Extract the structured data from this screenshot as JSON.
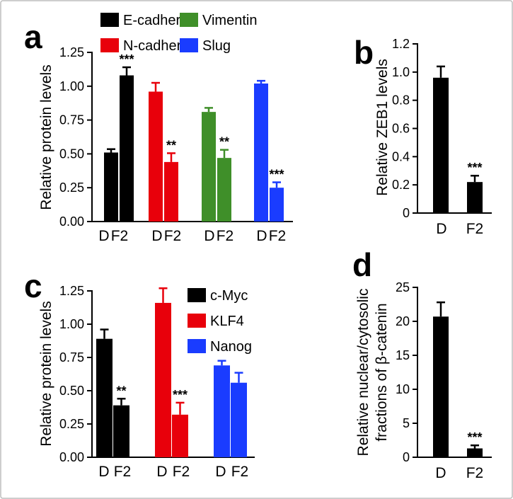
{
  "chart_data": [
    {
      "panel": "a",
      "type": "bar",
      "ylabel": "Relative protein levels",
      "ylim": [
        0,
        1.25
      ],
      "yticks": [
        "0.00",
        "0.25",
        "0.50",
        "0.75",
        "1.00",
        "1.25"
      ],
      "categories": [
        "D",
        "F2"
      ],
      "legend": {
        "placement": "top",
        "entries": [
          {
            "name": "E-cadherin",
            "color": "#000000"
          },
          {
            "name": "N-cadherin",
            "color": "#e8000b"
          },
          {
            "name": "Vimentin",
            "color": "#3f8f29"
          },
          {
            "name": "Slug",
            "color": "#1a3cff"
          }
        ]
      },
      "series": [
        {
          "name": "E-cadherin",
          "color": "#000000",
          "values": [
            0.51,
            1.08
          ],
          "errors": [
            0.025,
            0.06
          ],
          "significance": [
            "",
            "***"
          ]
        },
        {
          "name": "N-cadherin",
          "color": "#e8000b",
          "values": [
            0.96,
            0.44
          ],
          "errors": [
            0.065,
            0.065
          ],
          "significance": [
            "",
            "**"
          ]
        },
        {
          "name": "Vimentin",
          "color": "#3f8f29",
          "values": [
            0.81,
            0.47
          ],
          "errors": [
            0.03,
            0.06
          ],
          "significance": [
            "",
            "**"
          ]
        },
        {
          "name": "Slug",
          "color": "#1a3cff",
          "values": [
            1.02,
            0.25
          ],
          "errors": [
            0.02,
            0.04
          ],
          "significance": [
            "",
            "***"
          ]
        }
      ]
    },
    {
      "panel": "b",
      "type": "bar",
      "ylabel": "Relative ZEB1 levels",
      "ylim": [
        0,
        1.2
      ],
      "yticks": [
        "0",
        "0.2",
        "0.4",
        "0.6",
        "0.8",
        "1.0",
        "1.2"
      ],
      "categories": [
        "D",
        "F2"
      ],
      "series": [
        {
          "color": "#000000",
          "values": [
            0.96,
            0.22
          ],
          "errors": [
            0.08,
            0.045
          ],
          "significance": [
            "",
            "***"
          ]
        }
      ]
    },
    {
      "panel": "c",
      "type": "bar",
      "ylabel": "Relative protein levels",
      "ylim": [
        0,
        1.25
      ],
      "yticks": [
        "0.00",
        "0.25",
        "0.50",
        "0.75",
        "1.00",
        "1.25"
      ],
      "categories": [
        "D",
        "F2"
      ],
      "legend": {
        "placement": "top-right",
        "entries": [
          {
            "name": "c-Myc",
            "color": "#000000"
          },
          {
            "name": "KLF4",
            "color": "#e8000b"
          },
          {
            "name": "Nanog",
            "color": "#1a3cff"
          }
        ]
      },
      "series": [
        {
          "name": "c-Myc",
          "color": "#000000",
          "values": [
            0.89,
            0.39
          ],
          "errors": [
            0.07,
            0.05
          ],
          "significance": [
            "",
            "**"
          ]
        },
        {
          "name": "KLF4",
          "color": "#e8000b",
          "values": [
            1.16,
            0.32
          ],
          "errors": [
            0.11,
            0.09
          ],
          "significance": [
            "",
            "***"
          ]
        },
        {
          "name": "Nanog",
          "color": "#1a3cff",
          "values": [
            0.69,
            0.56
          ],
          "errors": [
            0.035,
            0.075
          ],
          "significance": [
            "",
            ""
          ]
        }
      ]
    },
    {
      "panel": "d",
      "type": "bar",
      "ylabel": [
        "Relative nuclear/cytosolic",
        "fractions of β-catenin"
      ],
      "ylim": [
        0,
        25
      ],
      "yticks": [
        "0",
        "5",
        "10",
        "15",
        "20",
        "25"
      ],
      "categories": [
        "D",
        "F2"
      ],
      "series": [
        {
          "color": "#000000",
          "values": [
            20.7,
            1.3
          ],
          "errors": [
            2.1,
            0.45
          ],
          "significance": [
            "",
            "***"
          ]
        }
      ]
    }
  ]
}
